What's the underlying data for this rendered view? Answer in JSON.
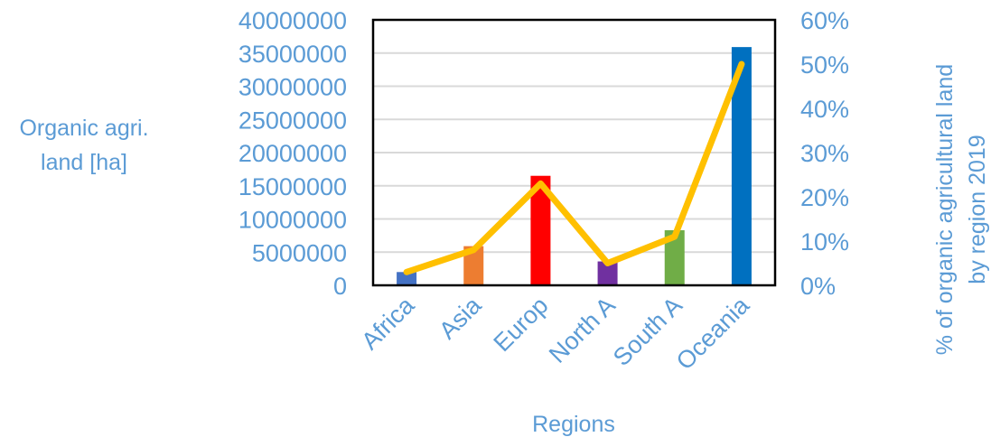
{
  "chart_data": {
    "type": "bar",
    "categories": [
      "Africa",
      "Asia",
      "Europ",
      "North A",
      "South A",
      "Oceania"
    ],
    "series": [
      {
        "values": [
          2000000,
          5900000,
          16500000,
          3600000,
          8300000,
          35900000
        ],
        "colors": [
          "#4472C4",
          "#ED7D31",
          "#FF0000",
          "#7030A0",
          "#70AD47",
          "#0070C0"
        ],
        "axis": "left"
      },
      {
        "type": "line",
        "values": [
          0.03,
          0.08,
          0.23,
          0.05,
          0.11,
          0.5
        ],
        "color": "#FFC000",
        "axis": "right"
      }
    ],
    "xlabel": "Regions",
    "ylabel_lines": [
      "Organic agri.",
      "land [ha]"
    ],
    "y2label_lines": [
      "% of  organic agricultural land",
      "by region 2019"
    ],
    "ylim": [
      0,
      40000000
    ],
    "y2lim": [
      0,
      0.6
    ],
    "yticks": [
      "0",
      "5000000",
      "10000000",
      "15000000",
      "20000000",
      "25000000",
      "30000000",
      "35000000",
      "40000000"
    ],
    "y2ticks": [
      "0%",
      "10%",
      "20%",
      "30%",
      "40%",
      "50%",
      "60%"
    ],
    "grid": true,
    "text_color": "#5B9BD5"
  }
}
